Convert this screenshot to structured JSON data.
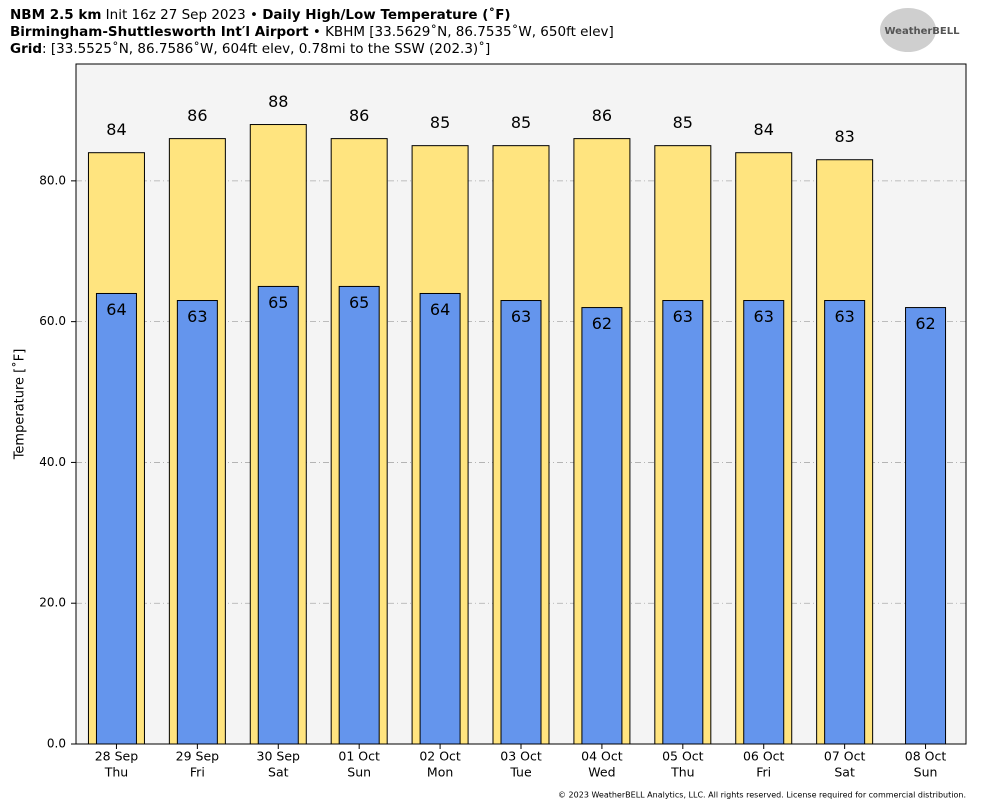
{
  "chart_data": {
    "type": "bar",
    "header": [
      [
        {
          "text": "NBM 2.5 km",
          "bold": true
        },
        {
          "text": " Init 16z 27 Sep 2023 • ",
          "bold": false
        },
        {
          "text": "Daily High/Low Temperature (˚F)",
          "bold": true
        }
      ],
      [
        {
          "text": "Birmingham-Shuttlesworth Int′l Airport",
          "bold": true
        },
        {
          "text": " • KBHM [33.5629˚N, 86.7535˚W, 650ft elev]",
          "bold": false
        }
      ],
      [
        {
          "text": "Grid",
          "bold": true
        },
        {
          "text": ": [33.5525˚N, 86.7586˚W, 604ft elev, 0.78mi to the SSW (202.3)˚]",
          "bold": false
        }
      ]
    ],
    "logo": "WeatherBELL",
    "ylabel": "Temperature [˚F]",
    "copyright": "© 2023 WeatherBELL Analytics, LLC. All rights reserved. License required for commercial distribution.",
    "categories": [
      "28 Sep",
      "29 Sep",
      "30 Sep",
      "01 Oct",
      "02 Oct",
      "03 Oct",
      "04 Oct",
      "05 Oct",
      "06 Oct",
      "07 Oct",
      "08 Oct"
    ],
    "weekdays": [
      "Thu",
      "Fri",
      "Sat",
      "Sun",
      "Mon",
      "Tue",
      "Wed",
      "Thu",
      "Fri",
      "Sat",
      "Sun"
    ],
    "series": [
      {
        "color": "#ffe47f",
        "values": [
          84,
          86,
          88,
          86,
          85,
          85,
          86,
          85,
          84,
          83,
          null
        ]
      },
      {
        "color": "#6495ed",
        "values": [
          64,
          63,
          65,
          65,
          64,
          63,
          62,
          63,
          63,
          63,
          62
        ]
      }
    ],
    "ylim": [
      0,
      96.6
    ],
    "yticks": [
      {
        "value": 0,
        "label": "0.0"
      },
      {
        "value": 20,
        "label": "20.0"
      },
      {
        "value": 40,
        "label": "40.0"
      },
      {
        "value": 60,
        "label": "60.0"
      },
      {
        "value": 80,
        "label": "80.0"
      }
    ],
    "grid": true
  }
}
